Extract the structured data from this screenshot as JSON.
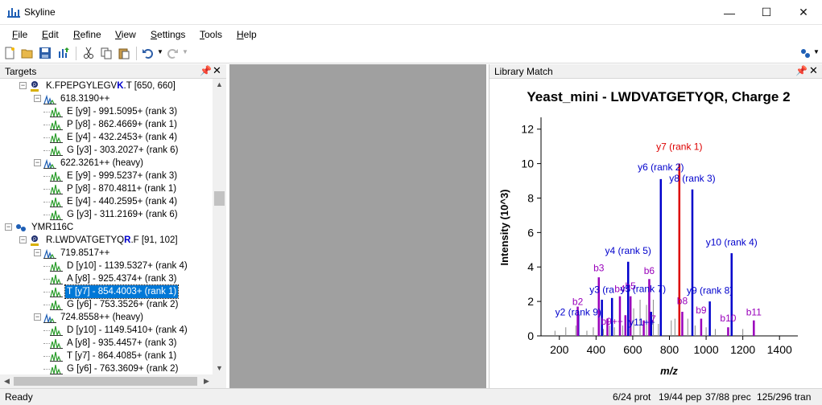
{
  "window": {
    "title": "Skyline",
    "controls": {
      "minimize": "—",
      "maximize": "☐",
      "close": "✕"
    }
  },
  "menu": [
    "File",
    "Edit",
    "Refine",
    "View",
    "Settings",
    "Tools",
    "Help"
  ],
  "menu_mnemonics": [
    "F",
    "E",
    "R",
    "V",
    "S",
    "T",
    "H"
  ],
  "toolbar": {
    "icons": [
      "new-icon",
      "open-icon",
      "save-icon",
      "import-results-icon",
      "cut-icon",
      "copy-icon",
      "paste-icon",
      "undo-icon",
      "redo-icon",
      "sync-icon"
    ]
  },
  "targets": {
    "title": "Targets",
    "rows": [
      {
        "text": "K.FPEPGYLEGV",
        "bold": "K",
        "tail": ".T [650, 660]",
        "level": 1,
        "type": "peptide"
      },
      {
        "text": "618.3190++",
        "level": 2,
        "type": "precursor"
      },
      {
        "text": "E [y9] - 991.5095+ (rank 3)",
        "level": 3,
        "type": "transition"
      },
      {
        "text": "P [y8] - 862.4669+ (rank 1)",
        "level": 3,
        "type": "transition"
      },
      {
        "text": "E [y4] - 432.2453+ (rank 4)",
        "level": 3,
        "type": "transition"
      },
      {
        "text": "G [y3] - 303.2027+ (rank 6)",
        "level": 3,
        "type": "transition"
      },
      {
        "text": "622.3261++ (heavy)",
        "level": 2,
        "type": "precursor"
      },
      {
        "text": "E [y9] - 999.5237+ (rank 3)",
        "level": 3,
        "type": "transition"
      },
      {
        "text": "P [y8] - 870.4811+ (rank 1)",
        "level": 3,
        "type": "transition"
      },
      {
        "text": "E [y4] - 440.2595+ (rank 4)",
        "level": 3,
        "type": "transition"
      },
      {
        "text": "G [y3] - 311.2169+ (rank 6)",
        "level": 3,
        "type": "transition"
      },
      {
        "text": "YMR116C",
        "level": 0,
        "type": "protein"
      },
      {
        "text": "R.LWDVATGETYQ",
        "bold": "R",
        "tail": ".F [91, 102]",
        "level": 1,
        "type": "peptide"
      },
      {
        "text": "719.8517++",
        "level": 2,
        "type": "precursor"
      },
      {
        "text": "D [y10] - 1139.5327+ (rank 4)",
        "level": 3,
        "type": "transition"
      },
      {
        "text": "A [y8] - 925.4374+ (rank 3)",
        "level": 3,
        "type": "transition"
      },
      {
        "text": "T [y7] - 854.4003+ (rank 1)",
        "level": 3,
        "type": "transition",
        "selected": true
      },
      {
        "text": "G [y6] - 753.3526+ (rank 2)",
        "level": 3,
        "type": "transition"
      },
      {
        "text": "724.8558++ (heavy)",
        "level": 2,
        "type": "precursor"
      },
      {
        "text": "D [y10] - 1149.5410+ (rank 4)",
        "level": 3,
        "type": "transition"
      },
      {
        "text": "A [y8] - 935.4457+ (rank 3)",
        "level": 3,
        "type": "transition"
      },
      {
        "text": "T [y7] - 864.4085+ (rank 1)",
        "level": 3,
        "type": "transition"
      },
      {
        "text": "G [y6] - 763.3609+ (rank 2)",
        "level": 3,
        "type": "transition"
      }
    ]
  },
  "library": {
    "title": "Library Match"
  },
  "chart_data": {
    "type": "bar",
    "title": "Yeast_mini - LWDVATGETYQR, Charge 2",
    "xlabel": "m/z",
    "ylabel": "Intensity (10^3)",
    "xlim": [
      100,
      1500
    ],
    "ylim": [
      0,
      12.5
    ],
    "xticks": [
      200,
      400,
      600,
      800,
      1000,
      1200,
      1400
    ],
    "yticks": [
      0,
      2,
      4,
      6,
      8,
      10,
      12
    ],
    "colors": {
      "y": "#0000cc",
      "b": "#9900bb",
      "selected": "#dd0000",
      "other": "#888888"
    },
    "peaks": [
      {
        "mz": 176,
        "i": 0.3,
        "kind": "other"
      },
      {
        "mz": 235,
        "i": 0.5,
        "kind": "other"
      },
      {
        "mz": 290,
        "i": 0.6,
        "kind": "other"
      },
      {
        "mz": 303,
        "i": 1.2,
        "kind": "y"
      },
      {
        "mz": 300,
        "i": 1.7,
        "kind": "b"
      },
      {
        "mz": 350,
        "i": 0.3,
        "kind": "other"
      },
      {
        "mz": 385,
        "i": 0.5,
        "kind": "other"
      },
      {
        "mz": 415,
        "i": 3.4,
        "kind": "b"
      },
      {
        "mz": 432,
        "i": 2.1,
        "kind": "y"
      },
      {
        "mz": 440,
        "i": 0.4,
        "kind": "other"
      },
      {
        "mz": 462,
        "i": 1.0,
        "kind": "b"
      },
      {
        "mz": 475,
        "i": 0.6,
        "kind": "other"
      },
      {
        "mz": 487,
        "i": 2.2,
        "kind": "y"
      },
      {
        "mz": 500,
        "i": 0.5,
        "kind": "other"
      },
      {
        "mz": 530,
        "i": 2.3,
        "kind": "b"
      },
      {
        "mz": 545,
        "i": 0.6,
        "kind": "other"
      },
      {
        "mz": 560,
        "i": 1.2,
        "kind": "b"
      },
      {
        "mz": 575,
        "i": 4.3,
        "kind": "y"
      },
      {
        "mz": 588,
        "i": 2.3,
        "kind": "b"
      },
      {
        "mz": 605,
        "i": 1.6,
        "kind": "other"
      },
      {
        "mz": 640,
        "i": 2.1,
        "kind": "other"
      },
      {
        "mz": 660,
        "i": 0.9,
        "kind": "b"
      },
      {
        "mz": 675,
        "i": 1.8,
        "kind": "other"
      },
      {
        "mz": 690,
        "i": 3.3,
        "kind": "b"
      },
      {
        "mz": 700,
        "i": 1.4,
        "kind": "y"
      },
      {
        "mz": 712,
        "i": 2.1,
        "kind": "other"
      },
      {
        "mz": 740,
        "i": 0.7,
        "kind": "other"
      },
      {
        "mz": 753,
        "i": 9.1,
        "kind": "y"
      },
      {
        "mz": 810,
        "i": 0.9,
        "kind": "other"
      },
      {
        "mz": 830,
        "i": 1.0,
        "kind": "other"
      },
      {
        "mz": 854,
        "i": 10.0,
        "kind": "selected"
      },
      {
        "mz": 870,
        "i": 1.4,
        "kind": "b"
      },
      {
        "mz": 900,
        "i": 1.0,
        "kind": "other"
      },
      {
        "mz": 925,
        "i": 8.5,
        "kind": "y"
      },
      {
        "mz": 940,
        "i": 0.6,
        "kind": "other"
      },
      {
        "mz": 973,
        "i": 1.0,
        "kind": "b"
      },
      {
        "mz": 1000,
        "i": 0.5,
        "kind": "other"
      },
      {
        "mz": 1020,
        "i": 2.0,
        "kind": "y"
      },
      {
        "mz": 1050,
        "i": 0.4,
        "kind": "other"
      },
      {
        "mz": 1120,
        "i": 0.5,
        "kind": "b"
      },
      {
        "mz": 1139,
        "i": 4.8,
        "kind": "y"
      },
      {
        "mz": 1200,
        "i": 0.4,
        "kind": "other"
      },
      {
        "mz": 1260,
        "i": 0.9,
        "kind": "b"
      }
    ],
    "annotations": [
      {
        "text": "y7 (rank 1)",
        "mz": 854,
        "i": 10.8,
        "kind": "selected"
      },
      {
        "text": "y6 (rank 2)",
        "mz": 753,
        "i": 9.6,
        "kind": "y"
      },
      {
        "text": "y8 (rank 3)",
        "mz": 925,
        "i": 8.95,
        "kind": "y"
      },
      {
        "text": "y10 (rank 4)",
        "mz": 1139,
        "i": 5.25,
        "kind": "y"
      },
      {
        "text": "y4 (rank 5)",
        "mz": 575,
        "i": 4.75,
        "kind": "y"
      },
      {
        "text": "b3",
        "mz": 415,
        "i": 3.75,
        "kind": "b"
      },
      {
        "text": "b6",
        "mz": 690,
        "i": 3.6,
        "kind": "b"
      },
      {
        "text": "b5",
        "mz": 588,
        "i": 2.7,
        "kind": "b"
      },
      {
        "text": "y3 (ra",
        "mz": 432,
        "i": 2.5,
        "kind": "y"
      },
      {
        "text": "b4",
        "mz": 530,
        "i": 2.55,
        "kind": "b"
      },
      {
        "text": "y5",
        "mz": 560,
        "i": 2.55,
        "kind": "y"
      },
      {
        "text": "(rank 7)",
        "mz": 690,
        "i": 2.55,
        "kind": "y"
      },
      {
        "text": "y9 (rank 8)",
        "mz": 1020,
        "i": 2.45,
        "kind": "y"
      },
      {
        "text": "b2",
        "mz": 300,
        "i": 1.8,
        "kind": "b"
      },
      {
        "text": "b8",
        "mz": 870,
        "i": 1.85,
        "kind": "b"
      },
      {
        "text": "b9",
        "mz": 973,
        "i": 1.3,
        "kind": "b"
      },
      {
        "text": "y2 (rank 9)",
        "mz": 303,
        "i": 1.2,
        "kind": "y"
      },
      {
        "text": "b11",
        "mz": 1260,
        "i": 1.2,
        "kind": "b"
      },
      {
        "text": "b9++",
        "mz": 487,
        "i": 0.65,
        "kind": "b"
      },
      {
        "text": "y11++",
        "mz": 650,
        "i": 0.6,
        "kind": "y"
      },
      {
        "text": "7",
        "mz": 712,
        "i": 0.8,
        "kind": "b"
      },
      {
        "text": "b10",
        "mz": 1120,
        "i": 0.85,
        "kind": "b"
      }
    ]
  },
  "status": {
    "ready": "Ready",
    "prot": "6/24 prot",
    "pep": "19/44 pep",
    "prec": "37/88 prec",
    "tran": "125/296 tran"
  }
}
